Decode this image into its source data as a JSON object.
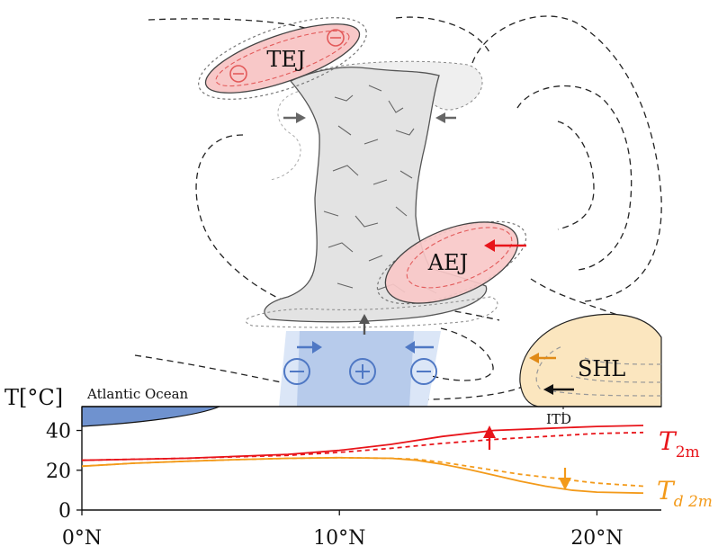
{
  "labels": {
    "tej": "TEJ",
    "aej": "AEJ",
    "shl": "SHL",
    "itd": "ITD",
    "ocean": "Atlantic Ocean",
    "minus": "−",
    "plus": "+"
  },
  "axis": {
    "ylabel": "T[°C]",
    "yticks": [
      "0",
      "20",
      "40"
    ],
    "xticks": [
      "0°N",
      "10°N",
      "20°N"
    ]
  },
  "series_labels": {
    "t2m": {
      "base": "T",
      "sub": "2m"
    },
    "td2m": {
      "base": "T",
      "sub": "d 2m"
    }
  },
  "colors": {
    "t2m": "#e8141a",
    "td2m": "#f39a1a",
    "jet_fill": "#f8c8c8",
    "jet_edge": "#e35a5a",
    "cloud": "#e3e3e3",
    "monsoon": "#b7cbeb",
    "shl": "#fbe6bf",
    "ocean": "#6f92cf",
    "arrow_blue": "#4f78c4",
    "arrow_orange": "#e08a16"
  },
  "chart_data": {
    "type": "line",
    "x_unit": "°N",
    "y_unit": "°C",
    "xlim": [
      0,
      22.5
    ],
    "ylim": [
      0,
      52
    ],
    "series": [
      {
        "name": "T2m",
        "style": "solid",
        "x": [
          0,
          4,
          8,
          10,
          12,
          14,
          16,
          18,
          20,
          21.8
        ],
        "y": [
          25,
          26,
          28,
          30,
          33,
          37,
          40,
          41,
          42,
          42.5
        ]
      },
      {
        "name": "T2m",
        "style": "dashed",
        "x": [
          0,
          4,
          8,
          10,
          12,
          14,
          16,
          18,
          20,
          21.8
        ],
        "y": [
          25,
          26,
          27.5,
          29,
          31,
          33.5,
          35.5,
          37,
          38.5,
          39
        ]
      },
      {
        "name": "Td2m",
        "style": "solid",
        "x": [
          0,
          2,
          4,
          6,
          8,
          10,
          12,
          13,
          14,
          15,
          16,
          17,
          18,
          19,
          20,
          21.8
        ],
        "y": [
          22,
          23.5,
          24.5,
          25.3,
          26,
          26.3,
          26,
          25,
          23,
          20.5,
          17.5,
          14.5,
          12,
          10,
          9,
          8.5
        ]
      },
      {
        "name": "Td2m",
        "style": "dashed",
        "x": [
          0,
          2,
          4,
          6,
          8,
          10,
          12,
          13,
          14,
          15,
          16,
          17,
          18,
          19,
          20,
          21.8
        ],
        "y": [
          22,
          23.5,
          24.5,
          25.3,
          26,
          26.3,
          26,
          25.5,
          24,
          22,
          20,
          18,
          16.5,
          15,
          13.5,
          12
        ]
      }
    ]
  }
}
